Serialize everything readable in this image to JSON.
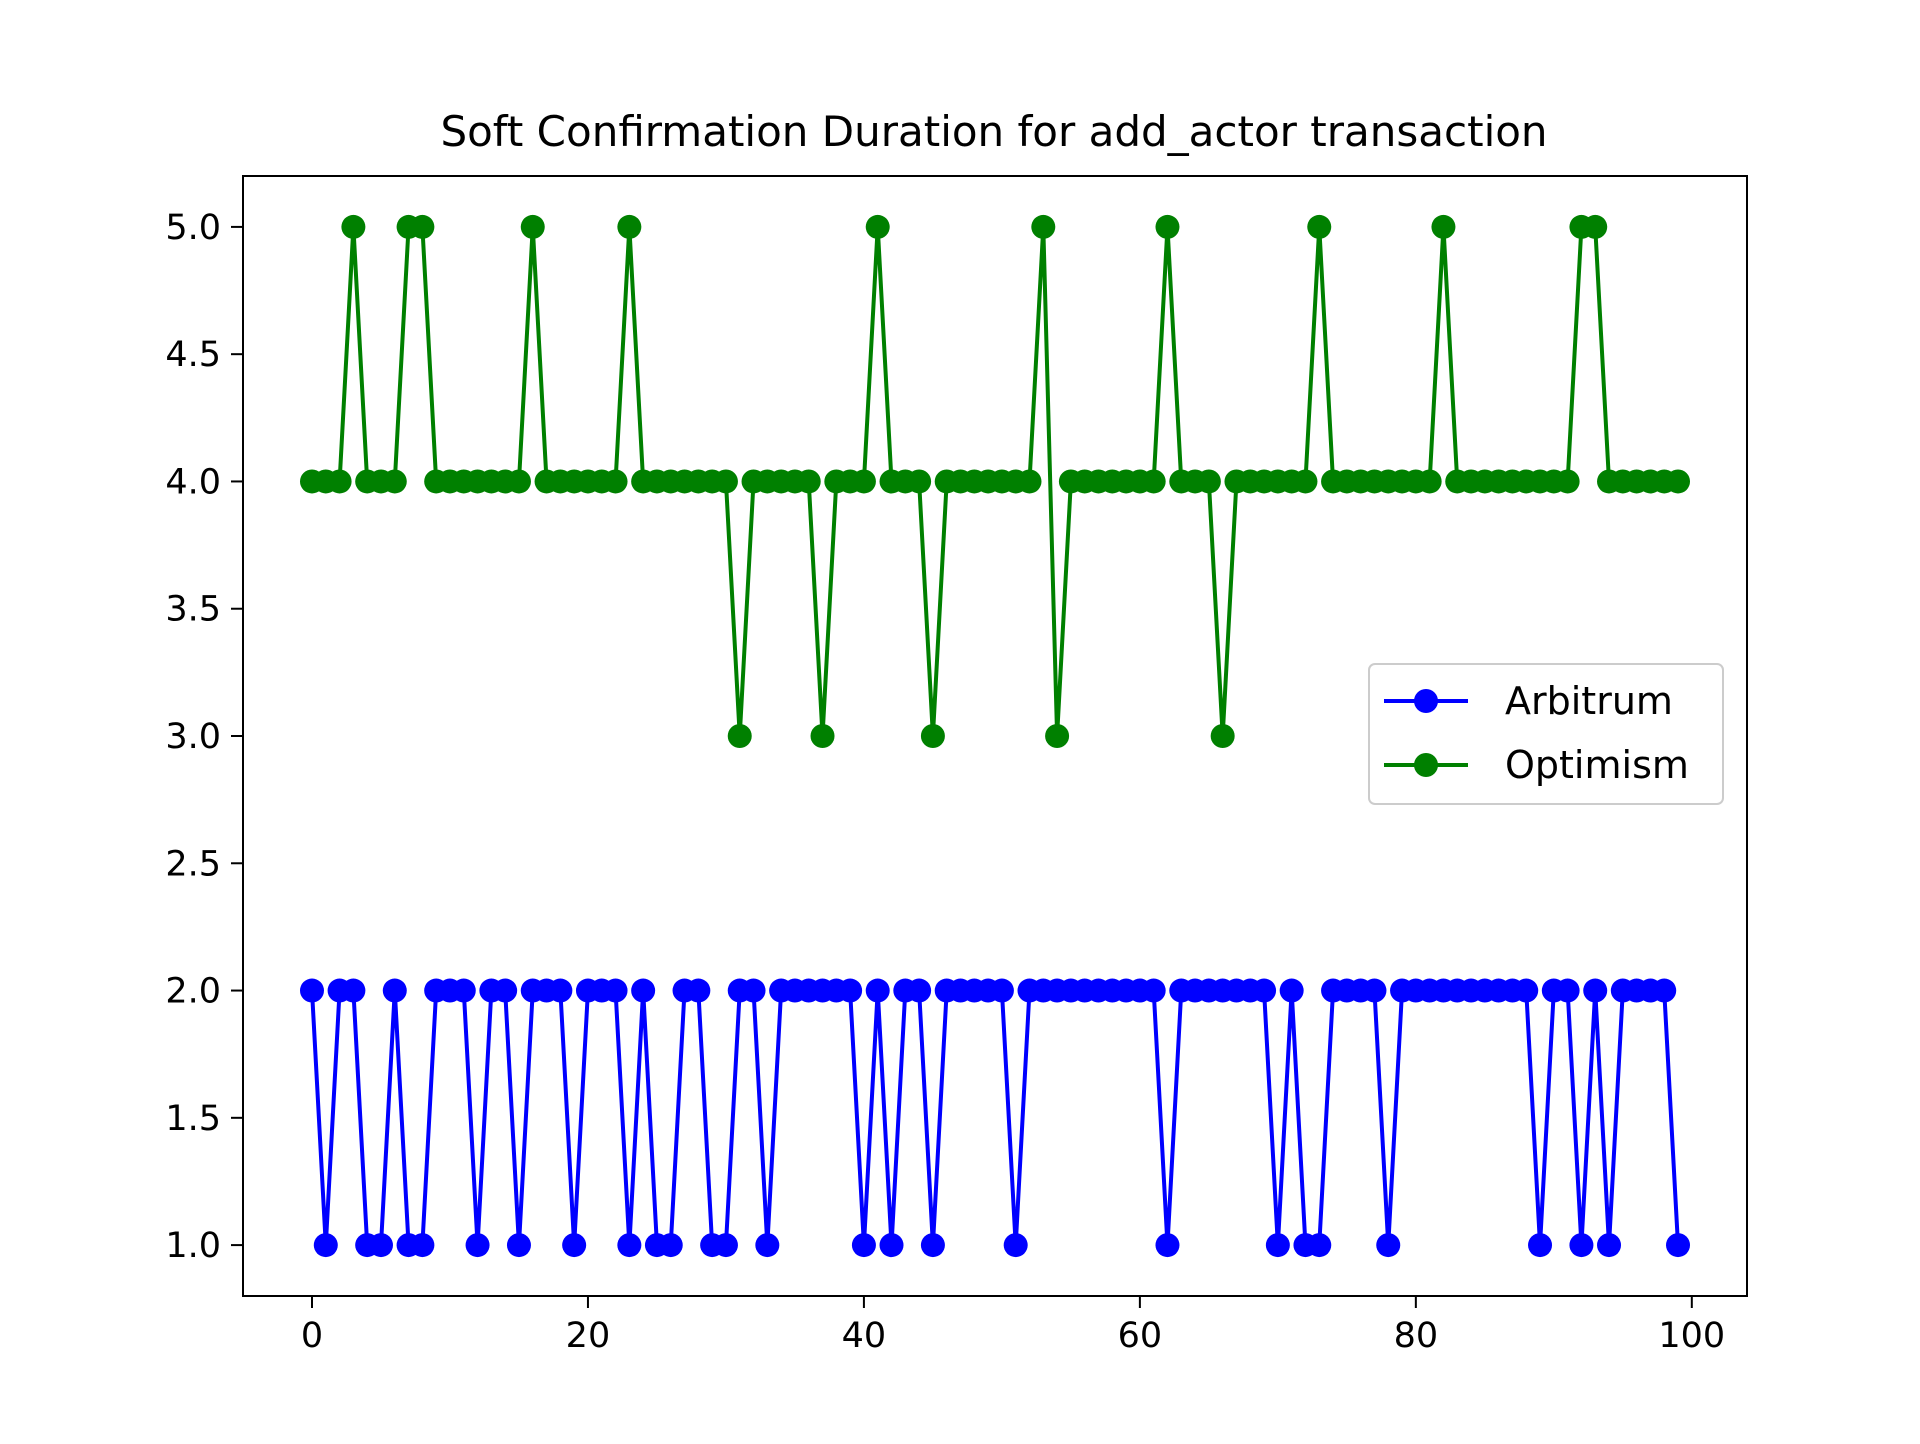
{
  "chart_data": {
    "type": "line",
    "title": "Soft Confirmation Duration for add_actor transaction",
    "xlabel": "",
    "ylabel": "",
    "xlim": [
      -5,
      104
    ],
    "ylim": [
      0.8,
      5.2
    ],
    "xticks": [
      0,
      20,
      40,
      60,
      80,
      100
    ],
    "xtick_labels": [
      "0",
      "20",
      "40",
      "60",
      "80",
      "100"
    ],
    "yticks": [
      1.0,
      1.5,
      2.0,
      2.5,
      3.0,
      3.5,
      4.0,
      4.5,
      5.0
    ],
    "ytick_labels": [
      "1.0",
      "1.5",
      "2.0",
      "2.5",
      "3.0",
      "3.5",
      "4.0",
      "4.5",
      "5.0"
    ],
    "grid": false,
    "legend_position": "center-right",
    "series": [
      {
        "name": "Arbitrum",
        "color": "#0000ff",
        "marker": "circle",
        "values": [
          2,
          1,
          2,
          2,
          1,
          1,
          2,
          1,
          1,
          2,
          2,
          2,
          1,
          2,
          2,
          1,
          2,
          2,
          2,
          1,
          2,
          2,
          2,
          1,
          2,
          1,
          1,
          2,
          2,
          1,
          1,
          2,
          2,
          1,
          2,
          2,
          2,
          2,
          2,
          2,
          1,
          2,
          1,
          2,
          2,
          1,
          2,
          2,
          2,
          2,
          2,
          1,
          2,
          2,
          2,
          2,
          2,
          2,
          2,
          2,
          2,
          2,
          1,
          2,
          2,
          2,
          2,
          2,
          2,
          2,
          1,
          2,
          1,
          1,
          2,
          2,
          2,
          2,
          1,
          2,
          2,
          2,
          2,
          2,
          2,
          2,
          2,
          2,
          2,
          1,
          2,
          2,
          1,
          2,
          1,
          2,
          2,
          2,
          2,
          1
        ]
      },
      {
        "name": "Optimism",
        "color": "#008000",
        "marker": "circle",
        "values": [
          4,
          4,
          4,
          5,
          4,
          4,
          4,
          5,
          5,
          4,
          4,
          4,
          4,
          4,
          4,
          4,
          5,
          4,
          4,
          4,
          4,
          4,
          4,
          5,
          4,
          4,
          4,
          4,
          4,
          4,
          4,
          3,
          4,
          4,
          4,
          4,
          4,
          3,
          4,
          4,
          4,
          5,
          4,
          4,
          4,
          3,
          4,
          4,
          4,
          4,
          4,
          4,
          4,
          5,
          3,
          4,
          4,
          4,
          4,
          4,
          4,
          4,
          5,
          4,
          4,
          4,
          3,
          4,
          4,
          4,
          4,
          4,
          4,
          5,
          4,
          4,
          4,
          4,
          4,
          4,
          4,
          4,
          5,
          4,
          4,
          4,
          4,
          4,
          4,
          4,
          4,
          4,
          5,
          5,
          4,
          4,
          4,
          4,
          4,
          4
        ]
      }
    ]
  }
}
